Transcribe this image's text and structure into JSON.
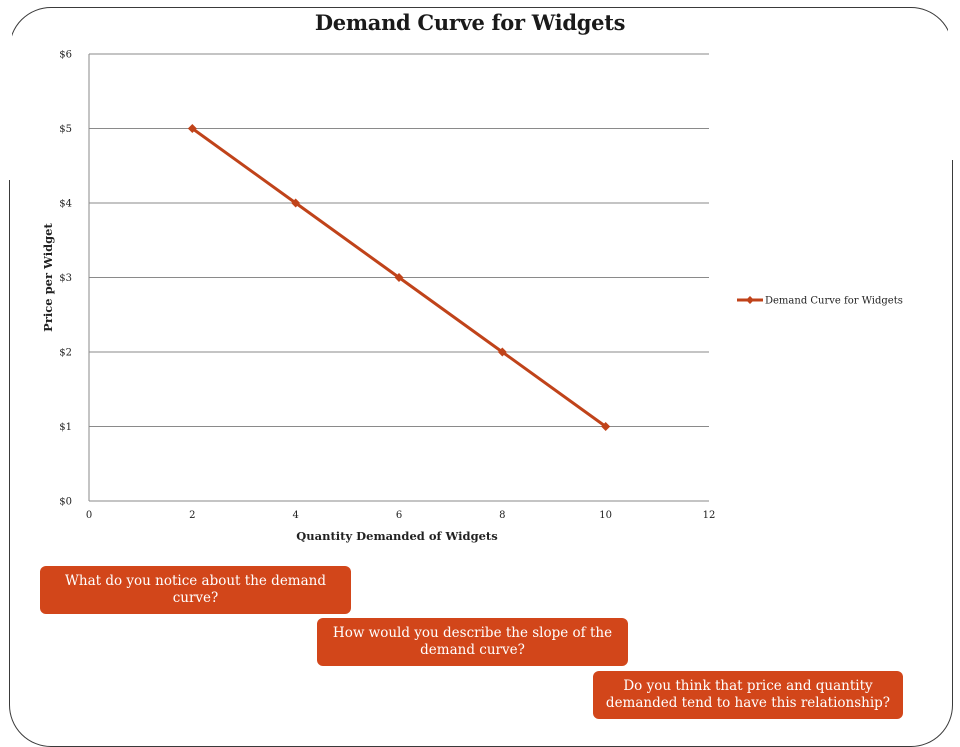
{
  "chart_data": {
    "type": "line",
    "title": "Demand Curve for Widgets",
    "xlabel": "Quantity Demanded  of Widgets",
    "ylabel": "Price per Widget",
    "xlim": [
      0,
      12
    ],
    "ylim": [
      0,
      6
    ],
    "x_ticks": [
      "0",
      "2",
      "4",
      "6",
      "8",
      "10",
      "12"
    ],
    "y_ticks": [
      "$0",
      "$1",
      "$2",
      "$3",
      "$4",
      "$5",
      "$6"
    ],
    "grid": "horizontal",
    "legend_position": "right",
    "series": [
      {
        "name": "Demand Curve for Widgets",
        "color": "#c0431a",
        "marker": "diamond",
        "x": [
          2,
          4,
          6,
          8,
          10
        ],
        "y": [
          5,
          4,
          3,
          2,
          1
        ]
      }
    ]
  },
  "callouts": {
    "q1": "What do you notice about the demand curve?",
    "q2": "How would you describe the slope of the demand curve?",
    "q3": "Do you think that price and quantity demanded tend to have this relationship?"
  }
}
